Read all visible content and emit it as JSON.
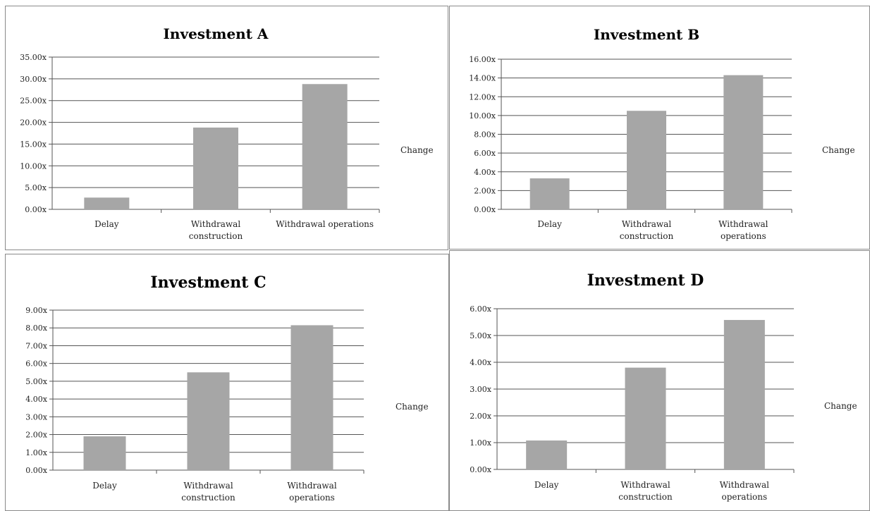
{
  "chart_data": [
    {
      "type": "bar",
      "title": "Investment A",
      "categories": [
        "Delay",
        "Withdrawal construction",
        "Withdrawal operations"
      ],
      "series": [
        {
          "name": "Change",
          "values": [
            2.7,
            18.8,
            28.8
          ]
        }
      ],
      "ylim": [
        0,
        35
      ],
      "yticks": [
        "0.00x",
        "5.00x",
        "10.00x",
        "15.00x",
        "20.00x",
        "25.00x",
        "30.00x",
        "35.00x"
      ],
      "grid": true,
      "legend": "right",
      "bar_color": "#a6a6a6"
    },
    {
      "type": "bar",
      "title": "Investment B",
      "categories": [
        "Delay",
        "Withdrawal construction",
        "Withdrawal operations"
      ],
      "series": [
        {
          "name": "Change",
          "values": [
            3.3,
            10.5,
            14.3
          ]
        }
      ],
      "ylim": [
        0,
        16
      ],
      "yticks": [
        "0.00x",
        "2.00x",
        "4.00x",
        "6.00x",
        "8.00x",
        "10.00x",
        "12.00x",
        "14.00x",
        "16.00x"
      ],
      "grid": true,
      "legend": "right",
      "bar_color": "#a6a6a6"
    },
    {
      "type": "bar",
      "title": "Investment C",
      "categories": [
        "Delay",
        "Withdrawal construction",
        "Withdrawal operations"
      ],
      "series": [
        {
          "name": "Change",
          "values": [
            1.9,
            5.5,
            8.15
          ]
        }
      ],
      "ylim": [
        0,
        9
      ],
      "yticks": [
        "0.00x",
        "1.00x",
        "2.00x",
        "3.00x",
        "4.00x",
        "5.00x",
        "6.00x",
        "7.00x",
        "8.00x",
        "9.00x"
      ],
      "grid": true,
      "legend": "right",
      "bar_color": "#a6a6a6"
    },
    {
      "type": "bar",
      "title": "Investment D",
      "categories": [
        "Delay",
        "Withdrawal construction",
        "Withdrawal operations"
      ],
      "series": [
        {
          "name": "Change",
          "values": [
            1.08,
            3.8,
            5.58
          ]
        }
      ],
      "ylim": [
        0,
        6
      ],
      "yticks": [
        "0.00x",
        "1.00x",
        "2.00x",
        "3.00x",
        "4.00x",
        "5.00x",
        "6.00x"
      ],
      "grid": true,
      "legend": "right",
      "bar_color": "#a6a6a6"
    }
  ]
}
